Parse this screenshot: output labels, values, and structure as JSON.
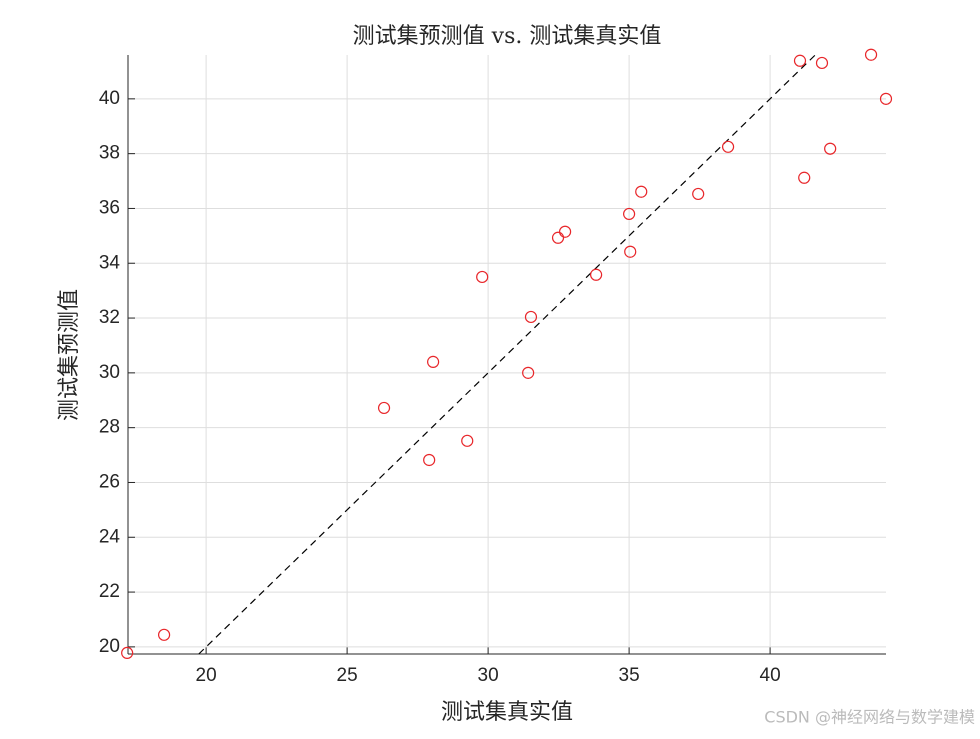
{
  "chart_data": {
    "type": "scatter",
    "title": "测试集预测值 vs. 测试集真实值",
    "x_label": "测试集真实值",
    "y_label": "测试集预测值",
    "series": [
      {
        "color": "#e8262a",
        "x": [
          17.2,
          18.51,
          26.31,
          27.91,
          28.05,
          29.26,
          29.79,
          31.42,
          31.52,
          32.48,
          32.73,
          33.83,
          35.0,
          35.04,
          35.43,
          37.45,
          38.51,
          41.06,
          41.21,
          41.84,
          42.13,
          43.58,
          44.11
        ],
        "values": [
          19.78,
          20.44,
          28.72,
          26.82,
          30.4,
          27.52,
          33.5,
          30.0,
          32.04,
          34.93,
          35.15,
          33.58,
          35.8,
          34.42,
          36.61,
          36.53,
          38.25,
          41.39,
          37.12,
          41.31,
          38.18,
          41.61,
          40.0
        ]
      }
    ],
    "xlim": [
      17.23,
      44.11
    ],
    "ylim": [
      19.74,
      41.6
    ],
    "xticks": [
      20,
      25,
      30,
      35,
      40
    ],
    "yticks": [
      20,
      22,
      24,
      26,
      28,
      30,
      32,
      34,
      36,
      38,
      40
    ],
    "grid": true,
    "watermark": "CSDN @神经网络与数学建模"
  }
}
